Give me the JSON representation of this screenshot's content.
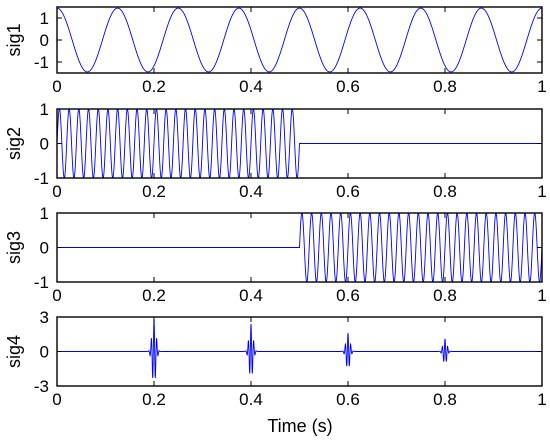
{
  "chart_data": {
    "type": "line",
    "xlabel": "Time (s)",
    "xlim": [
      0,
      1
    ],
    "x_ticks": [
      "0",
      "0.2",
      "0.4",
      "0.6",
      "0.8",
      "1"
    ],
    "grid": false,
    "line_color": "#0000ff",
    "panels": [
      {
        "ylabel": "sig1",
        "ylim": [
          -1.5,
          1.5
        ],
        "y_ticks": [
          "1",
          "0",
          "-1"
        ],
        "y_tick_values": [
          1,
          0,
          -1
        ],
        "signal": {
          "kind": "sinusoid",
          "amplitude": 1.45,
          "frequency_hz": 8,
          "phase": "cos",
          "start": 0,
          "end": 1
        }
      },
      {
        "ylabel": "sig2",
        "ylim": [
          -1,
          1
        ],
        "y_ticks": [
          "1",
          "0",
          "-1"
        ],
        "y_tick_values": [
          1,
          0,
          -1
        ],
        "signal": {
          "kind": "sinusoid",
          "amplitude": 1,
          "frequency_hz": 50,
          "phase": "sin",
          "start": 0,
          "end": 0.5
        }
      },
      {
        "ylabel": "sig3",
        "ylim": [
          -1,
          1
        ],
        "y_ticks": [
          "1",
          "0",
          "-1"
        ],
        "y_tick_values": [
          1,
          0,
          -1
        ],
        "signal": {
          "kind": "sinusoid",
          "amplitude": 1,
          "frequency_hz": 50,
          "phase": "sin",
          "start": 0.5,
          "end": 1
        }
      },
      {
        "ylabel": "sig4",
        "ylim": [
          -3,
          3
        ],
        "y_ticks": [
          "3",
          "0",
          "-3"
        ],
        "y_tick_values": [
          3,
          0,
          -3
        ],
        "signal": {
          "kind": "impulses",
          "times": [
            0.2,
            0.4,
            0.6,
            0.8
          ],
          "peaks": [
            2.9,
            2.4,
            1.6,
            1.1
          ],
          "frequency_hz": 180,
          "decay": 0.004
        }
      }
    ]
  }
}
